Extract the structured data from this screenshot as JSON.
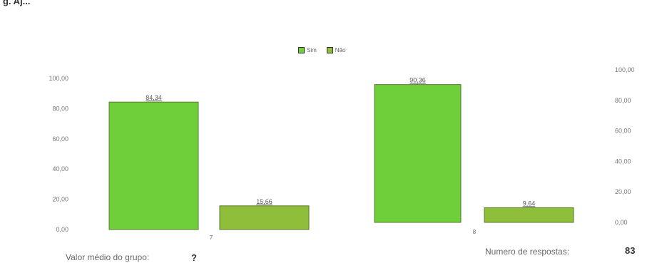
{
  "header": {
    "text": "g. Aj..."
  },
  "legend": [
    {
      "label": "Sim",
      "color": "#6fcf3a"
    },
    {
      "label": "Não",
      "color": "#8fbf3a"
    }
  ],
  "footer": {
    "left_label": "Valor médio do grupo:",
    "left_value": "?",
    "right_label": "Numero de respostas:",
    "right_value": "83"
  },
  "chart_data": [
    {
      "type": "bar",
      "categories": [
        "Sim",
        "Não"
      ],
      "values": [
        84.34,
        15.66
      ],
      "value_labels": [
        "84,34",
        "15,66"
      ],
      "colors": [
        "#6fcf3a",
        "#8fbf3a"
      ],
      "ylim": [
        0,
        100
      ],
      "yticks": [
        "0,00",
        "20,00",
        "40,00",
        "60,00",
        "80,00",
        "100,00"
      ],
      "axis_side": "left",
      "group_label": "7"
    },
    {
      "type": "bar",
      "categories": [
        "Sim",
        "Não"
      ],
      "values": [
        90.36,
        9.64
      ],
      "value_labels": [
        "90,36",
        "9,64"
      ],
      "colors": [
        "#6fcf3a",
        "#8fbf3a"
      ],
      "ylim": [
        0,
        100
      ],
      "yticks": [
        "0,00",
        "20,00",
        "40,00",
        "60,00",
        "80,00",
        "100,00"
      ],
      "axis_side": "right",
      "group_label": "8"
    }
  ]
}
